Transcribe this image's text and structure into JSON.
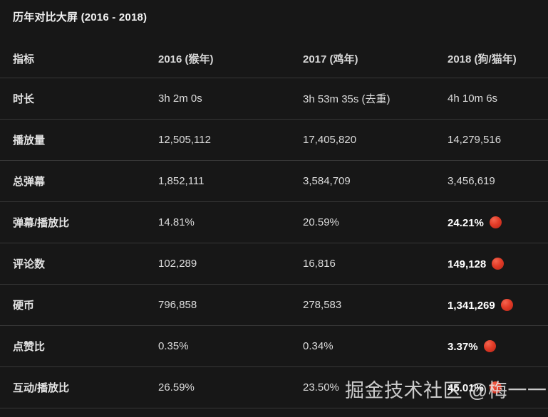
{
  "chart_data": {
    "type": "table",
    "title": "历年对比大屏 (2016 - 2018)",
    "columns": [
      "指标",
      "2016 (猴年)",
      "2017 (鸡年)",
      "2018 (狗/猫年)"
    ],
    "rows": [
      {
        "label": "时长",
        "values": [
          "3h 2m 0s",
          "3h 53m 35s (去重)",
          "4h 10m 6s"
        ],
        "highlight_2018": false
      },
      {
        "label": "播放量",
        "values": [
          "12,505,112",
          "17,405,820",
          "14,279,516"
        ],
        "highlight_2018": false
      },
      {
        "label": "总弹幕",
        "values": [
          "1,852,111",
          "3,584,709",
          "3,456,619"
        ],
        "highlight_2018": false
      },
      {
        "label": "弹幕/播放比",
        "values": [
          "14.81%",
          "20.59%",
          "24.21%"
        ],
        "highlight_2018": true
      },
      {
        "label": "评论数",
        "values": [
          "102,289",
          "16,816",
          "149,128"
        ],
        "highlight_2018": true
      },
      {
        "label": "硬币",
        "values": [
          "796,858",
          "278,583",
          "1,341,269"
        ],
        "highlight_2018": true
      },
      {
        "label": "点赞比",
        "values": [
          "0.35%",
          "0.34%",
          "3.37%"
        ],
        "highlight_2018": true
      },
      {
        "label": "互动/播放比",
        "values": [
          "26.59%",
          "23.50%",
          "45.01%"
        ],
        "highlight_2018": true
      }
    ],
    "legend": "red circle marks 2018 best / highlighted values"
  },
  "watermark": "掘金技术社区 @梅一一",
  "colors": {
    "background": "#171717",
    "text": "#dcdcdc",
    "highlight_text": "#ffffff",
    "divider": "#373737",
    "red_dot": "#e23b27"
  }
}
